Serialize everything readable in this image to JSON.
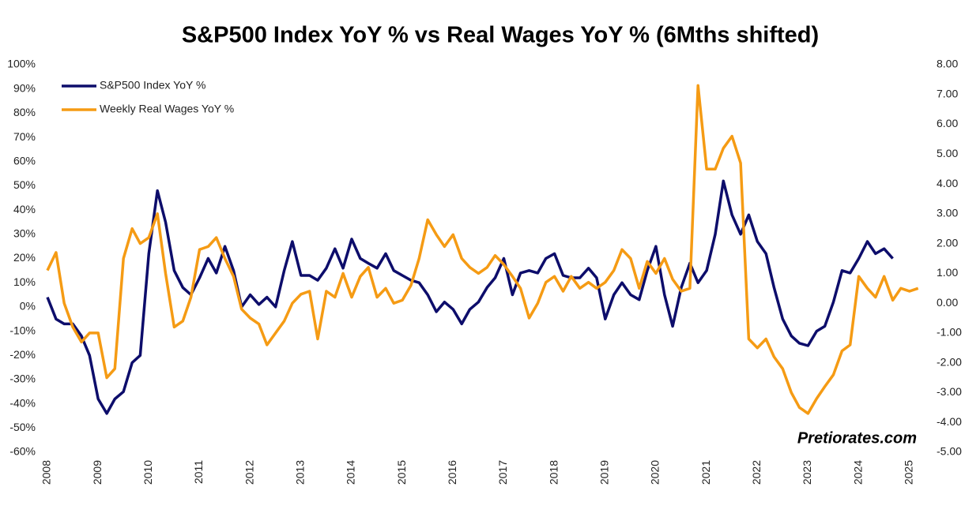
{
  "chart_data": {
    "type": "line",
    "title": "S&P500 Index YoY % vs Real Wages YoY % (6Mths shifted)",
    "annotation": "Pretiorates.com",
    "legend": "top-left",
    "x": [
      2008,
      2008.17,
      2008.33,
      2008.5,
      2008.67,
      2008.83,
      2009,
      2009.17,
      2009.33,
      2009.5,
      2009.67,
      2009.83,
      2010,
      2010.17,
      2010.33,
      2010.5,
      2010.67,
      2010.83,
      2011,
      2011.17,
      2011.33,
      2011.5,
      2011.67,
      2011.83,
      2012,
      2012.17,
      2012.33,
      2012.5,
      2012.67,
      2012.83,
      2013,
      2013.17,
      2013.33,
      2013.5,
      2013.67,
      2013.83,
      2014,
      2014.17,
      2014.33,
      2014.5,
      2014.67,
      2014.83,
      2015,
      2015.17,
      2015.33,
      2015.5,
      2015.67,
      2015.83,
      2016,
      2016.17,
      2016.33,
      2016.5,
      2016.67,
      2016.83,
      2017,
      2017.17,
      2017.33,
      2017.5,
      2017.67,
      2017.83,
      2018,
      2018.17,
      2018.33,
      2018.5,
      2018.67,
      2018.83,
      2019,
      2019.17,
      2019.33,
      2019.5,
      2019.67,
      2019.83,
      2020,
      2020.17,
      2020.33,
      2020.5,
      2020.67,
      2020.83,
      2021,
      2021.17,
      2021.33,
      2021.5,
      2021.67,
      2021.83,
      2022,
      2022.17,
      2022.33,
      2022.5,
      2022.67,
      2022.83,
      2023,
      2023.17,
      2023.33,
      2023.5,
      2023.67,
      2023.83,
      2024,
      2024.17,
      2024.33,
      2024.5,
      2024.67,
      2024.83,
      2025,
      2025.17
    ],
    "series": [
      {
        "name": "S&P500 Index YoY %",
        "color": "#0d0d6b",
        "axis": "y",
        "values": [
          4,
          -5,
          -7,
          -7,
          -12,
          -20,
          -38,
          -44,
          -38,
          -35,
          -23,
          -20,
          22,
          48,
          35,
          15,
          8,
          5,
          12,
          20,
          14,
          25,
          15,
          0,
          5,
          1,
          4,
          0,
          15,
          27,
          13,
          13,
          11,
          16,
          24,
          16,
          28,
          20,
          18,
          16,
          22,
          15,
          13,
          11,
          10,
          5,
          -2,
          2,
          -1,
          -7,
          -1,
          2,
          8,
          12,
          20,
          5,
          14,
          15,
          14,
          20,
          22,
          13,
          12,
          12,
          16,
          12,
          -5,
          5,
          10,
          5,
          3,
          15,
          25,
          5,
          -8,
          8,
          18,
          10,
          15,
          30,
          52,
          38,
          30,
          38,
          27,
          22,
          8,
          -5,
          -12,
          -15,
          -16,
          -10,
          -8,
          2,
          15,
          14,
          20,
          27,
          22,
          24,
          20,
          null,
          null,
          null
        ]
      },
      {
        "name": "Weekly Real Wages YoY %",
        "color": "#f59b14",
        "axis": "y2",
        "values": [
          1.1,
          1.7,
          0,
          -0.8,
          -1.3,
          -1.0,
          -1.0,
          -2.5,
          -2.2,
          1.5,
          2.5,
          2.0,
          2.2,
          3.0,
          1.0,
          -0.8,
          -0.6,
          0.2,
          1.8,
          1.9,
          2.2,
          1.5,
          0.9,
          -0.2,
          -0.5,
          -0.7,
          -1.4,
          -1.0,
          -0.6,
          0.0,
          0.3,
          0.4,
          -1.2,
          0.4,
          0.2,
          1.0,
          0.2,
          0.9,
          1.2,
          0.2,
          0.5,
          0.0,
          0.1,
          0.6,
          1.5,
          2.8,
          2.3,
          1.9,
          2.3,
          1.5,
          1.2,
          1.0,
          1.2,
          1.6,
          1.3,
          0.9,
          0.5,
          -0.5,
          0.0,
          0.7,
          0.9,
          0.4,
          0.9,
          0.5,
          0.7,
          0.5,
          0.7,
          1.1,
          1.8,
          1.5,
          0.5,
          1.4,
          1.0,
          1.5,
          0.8,
          0.4,
          0.5,
          7.3,
          4.5,
          4.5,
          5.2,
          5.6,
          4.7,
          -1.2,
          -1.5,
          -1.2,
          -1.8,
          -2.2,
          -3.0,
          -3.5,
          -3.7,
          -3.2,
          -2.8,
          -2.4,
          -1.6,
          -1.4,
          0.9,
          0.5,
          0.2,
          0.9,
          0.1,
          0.5,
          0.4,
          0.5
        ]
      }
    ],
    "xlim": [
      2008,
      2025.3
    ],
    "xticks": [
      2008,
      2009,
      2010,
      2011,
      2012,
      2013,
      2014,
      2015,
      2016,
      2017,
      2018,
      2019,
      2020,
      2021,
      2022,
      2023,
      2024,
      2025
    ],
    "ylim": [
      -60,
      100
    ],
    "yticks": [
      {
        "value": 100,
        "label": "100%"
      },
      {
        "value": 90,
        "label": "90%"
      },
      {
        "value": 80,
        "label": "80%"
      },
      {
        "value": 70,
        "label": "70%"
      },
      {
        "value": 60,
        "label": "60%"
      },
      {
        "value": 50,
        "label": "50%"
      },
      {
        "value": 40,
        "label": "40%"
      },
      {
        "value": 30,
        "label": "30%"
      },
      {
        "value": 20,
        "label": "20%"
      },
      {
        "value": 10,
        "label": "10%"
      },
      {
        "value": 0,
        "label": "0%"
      },
      {
        "value": -10,
        "label": "-10%"
      },
      {
        "value": -20,
        "label": "-20%"
      },
      {
        "value": -30,
        "label": "-30%"
      },
      {
        "value": -40,
        "label": "-40%"
      },
      {
        "value": -50,
        "label": "-50%"
      },
      {
        "value": -60,
        "label": "-60%"
      }
    ],
    "y2lim": [
      -5,
      8
    ],
    "y2ticks": [
      {
        "value": 8,
        "label": "8.00"
      },
      {
        "value": 7,
        "label": "7.00"
      },
      {
        "value": 6,
        "label": "6.00"
      },
      {
        "value": 5,
        "label": "5.00"
      },
      {
        "value": 4,
        "label": "4.00"
      },
      {
        "value": 3,
        "label": "3.00"
      },
      {
        "value": 2,
        "label": "2.00"
      },
      {
        "value": 1,
        "label": "1.00"
      },
      {
        "value": 0,
        "label": "0.00"
      },
      {
        "value": -1,
        "label": "-1.00"
      },
      {
        "value": -2,
        "label": "-2.00"
      },
      {
        "value": -3,
        "label": "-3.00"
      },
      {
        "value": -4,
        "label": "-4.00"
      },
      {
        "value": -5,
        "label": "-5.00"
      }
    ]
  }
}
